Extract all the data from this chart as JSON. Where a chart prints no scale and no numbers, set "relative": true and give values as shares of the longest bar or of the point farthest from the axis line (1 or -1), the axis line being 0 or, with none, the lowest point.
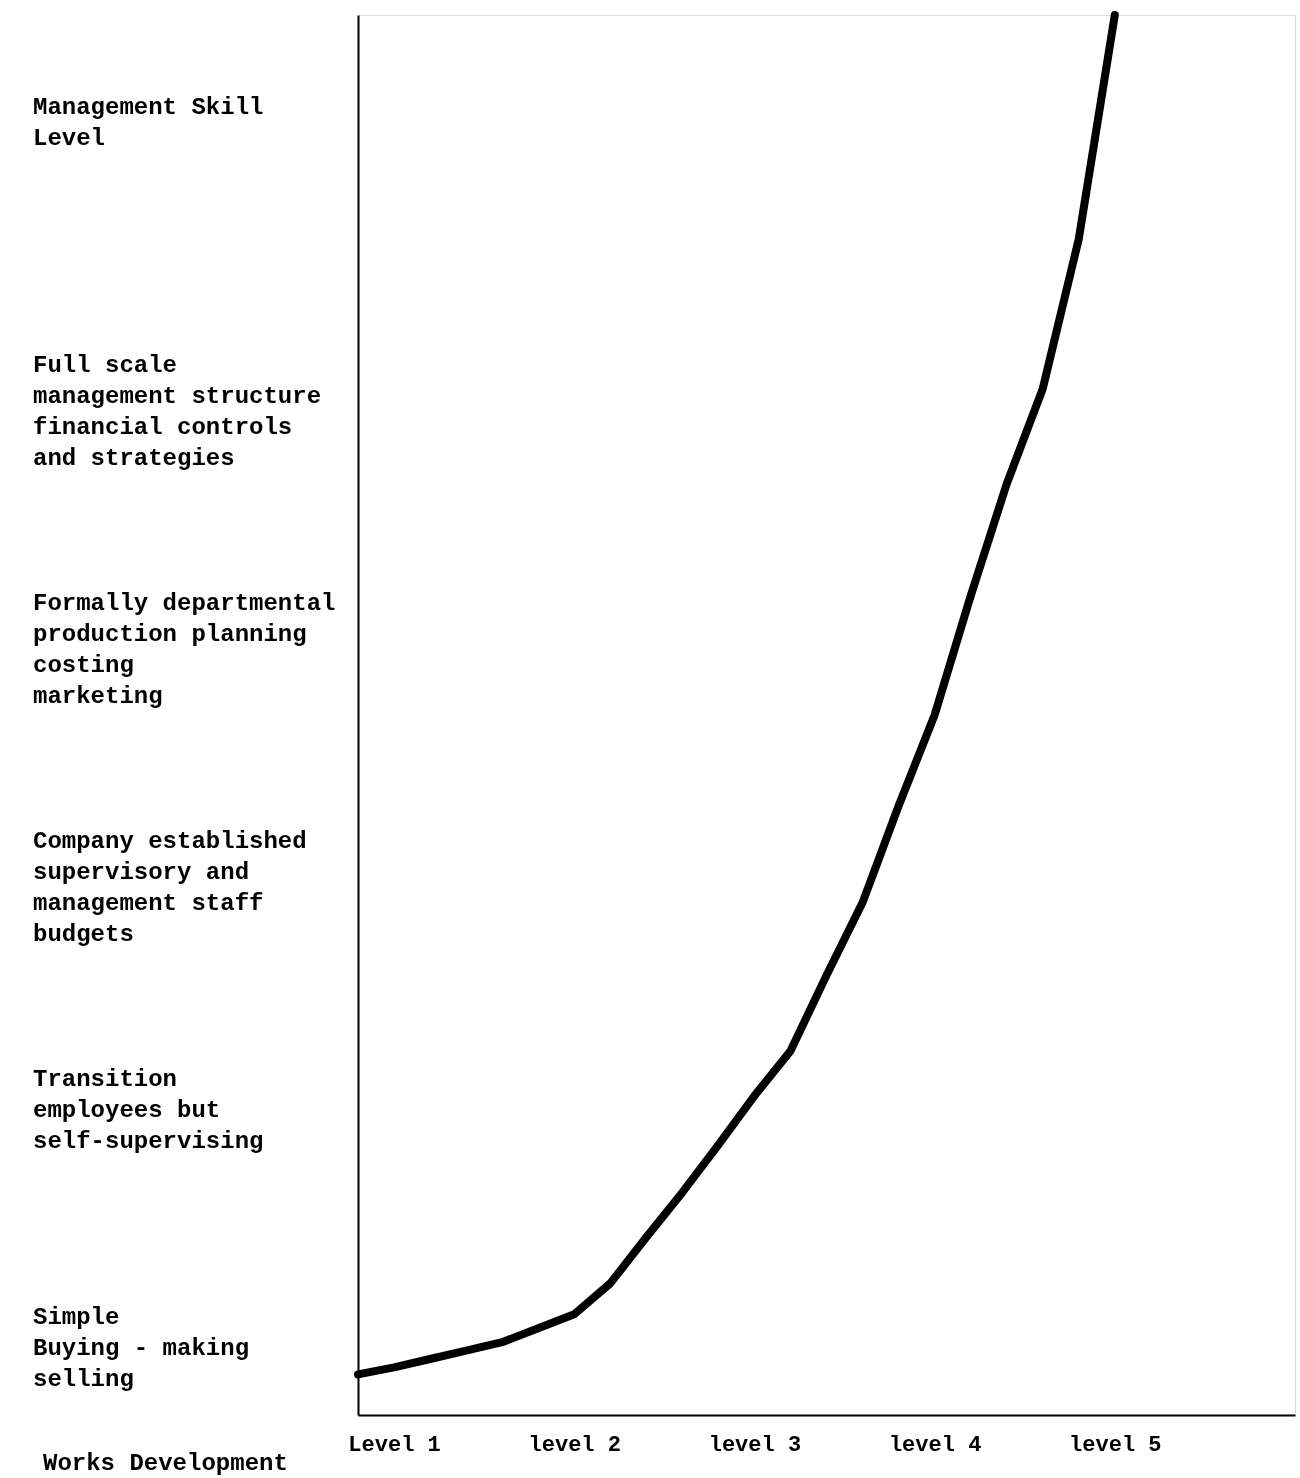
{
  "chart_data": {
    "type": "line",
    "relative": true,
    "ylabel": "Management Skill\n     Level",
    "xlabel": "Works Development",
    "categories": [
      null,
      "Level 1",
      null,
      null,
      null,
      null,
      "level 2",
      null,
      null,
      null,
      null,
      "level 3",
      null,
      null,
      null,
      null,
      "level 4",
      null,
      null,
      null,
      null,
      "level 5",
      null,
      null,
      null,
      null,
      null
    ],
    "series": [
      {
        "color": "#000000",
        "values": [
          0.029,
          0.034,
          0.04,
          0.046,
          0.052,
          0.062,
          0.072,
          0.094,
          0.127,
          0.159,
          0.193,
          0.228,
          0.26,
          0.314,
          0.366,
          0.435,
          0.5,
          0.585,
          0.665,
          0.733,
          0.84,
          1.0,
          null,
          null,
          null,
          null,
          null
        ]
      }
    ],
    "annotations": [
      "Full scale\nmanagement structure\nfinancial controls\nand strategies",
      "Formally departmental\nproduction planning\ncosting\nmarketing",
      "Company established\nsupervisory and\nmanagement staff\nbudgets",
      "Transition\nemployees but\nself-supervising",
      "Simple\nBuying - making\nselling"
    ],
    "tick_labels": "x",
    "grid": false
  }
}
